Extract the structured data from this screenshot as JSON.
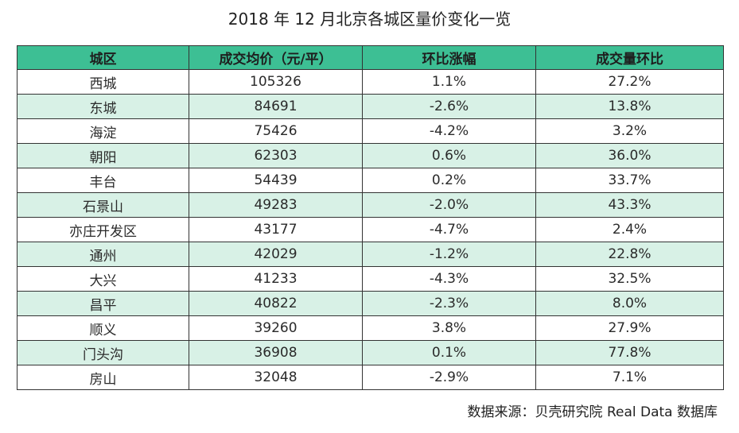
{
  "title": "2018 年 12 月北京各城区量价变化一览",
  "table": {
    "headers": [
      "城区",
      "成交均价（元/平）",
      "环比涨幅",
      "成交量环比"
    ],
    "rows": [
      [
        "西城",
        "105326",
        "1.1%",
        "27.2%"
      ],
      [
        "东城",
        "84691",
        "-2.6%",
        "13.8%"
      ],
      [
        "海淀",
        "75426",
        "-4.2%",
        "3.2%"
      ],
      [
        "朝阳",
        "62303",
        "0.6%",
        "36.0%"
      ],
      [
        "丰台",
        "54439",
        "0.2%",
        "33.7%"
      ],
      [
        "石景山",
        "49283",
        "-2.0%",
        "43.3%"
      ],
      [
        "亦庄开发区",
        "43177",
        "-4.7%",
        "2.4%"
      ],
      [
        "通州",
        "42029",
        "-1.2%",
        "22.8%"
      ],
      [
        "大兴",
        "41233",
        "-4.3%",
        "32.5%"
      ],
      [
        "昌平",
        "40822",
        "-2.3%",
        "8.0%"
      ],
      [
        "顺义",
        "39260",
        "3.8%",
        "27.9%"
      ],
      [
        "门头沟",
        "36908",
        "0.1%",
        "77.8%"
      ],
      [
        "房山",
        "32048",
        "-2.9%",
        "7.1%"
      ]
    ]
  },
  "source": "数据来源：贝壳研究院 Real Data 数据库",
  "colors": {
    "header_bg": "#3dbf94",
    "stripe_bg": "#d8f1e6",
    "border": "#333333"
  }
}
